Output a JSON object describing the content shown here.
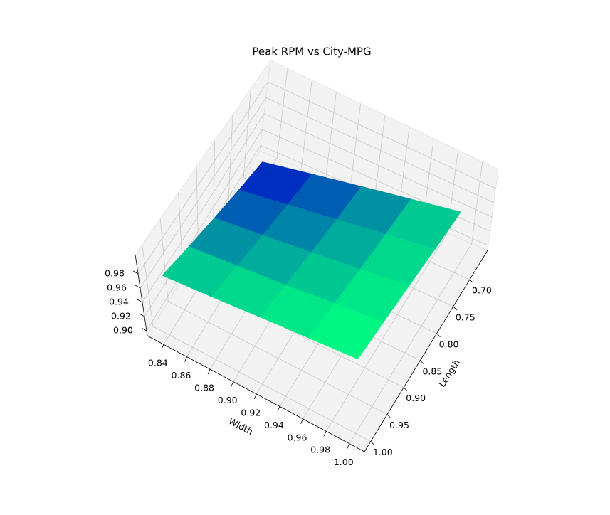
{
  "chart_data": {
    "type": "surface",
    "title": "Peak RPM vs City-MPG",
    "xlabel": "Length",
    "ylabel": "Width",
    "x": [
      0.7,
      0.775,
      0.85,
      0.925,
      1.0
    ],
    "y": [
      0.84,
      0.88,
      0.92,
      0.96,
      1.0
    ],
    "z": [
      [
        0.923,
        0.936,
        0.949,
        0.962,
        0.975
      ],
      [
        0.936,
        0.946,
        0.956,
        0.966,
        0.976
      ],
      [
        0.949,
        0.956,
        0.963,
        0.97,
        0.978
      ],
      [
        0.962,
        0.966,
        0.97,
        0.975,
        0.979
      ],
      [
        0.975,
        0.976,
        0.978,
        0.979,
        0.98
      ]
    ],
    "colormap": "winter",
    "xlim": [
      0.646,
      1.019
    ],
    "ylim": [
      0.826,
      1.013
    ],
    "zlim": [
      0.893,
      1.007
    ],
    "xticks": [
      {
        "value": 0.7,
        "label": "0.70"
      },
      0.75,
      {
        "value": 0.8,
        "label": "0.80"
      },
      0.85,
      {
        "value": 0.9,
        "label": "0.90"
      },
      0.95,
      {
        "value": 1.0,
        "label": "1.00"
      }
    ],
    "yticks": [
      0.84,
      0.86,
      0.88,
      {
        "value": 0.9,
        "label": "0.90"
      },
      0.92,
      0.94,
      0.96,
      0.98,
      {
        "value": 1.0,
        "label": "1.00"
      }
    ],
    "zticks": [
      {
        "value": 0.9,
        "label": "0.90"
      },
      0.92,
      0.94,
      0.96,
      0.98
    ],
    "grid": true
  }
}
